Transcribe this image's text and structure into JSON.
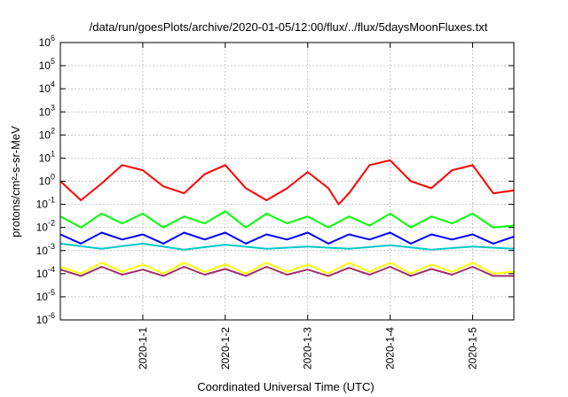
{
  "chart_data": {
    "type": "line",
    "title": "/data/run/goesPlots/archive/2020-01-05/12:00/flux/../flux/5daysMoonFluxes.txt",
    "xlabel": "Coordinated Universal Time (UTC)",
    "ylabel": "protons/cm²-s-sr-MeV",
    "y_scale": "log",
    "ylim": [
      1e-06,
      1000000.0
    ],
    "xlim": [
      "2019-12-31T00:00",
      "2020-01-05T12:00"
    ],
    "grid": true,
    "legend": "none",
    "y_ticks": [
      {
        "base": "10",
        "exp": "-6"
      },
      {
        "base": "10",
        "exp": "-5"
      },
      {
        "base": "10",
        "exp": "-4"
      },
      {
        "base": "10",
        "exp": "-3"
      },
      {
        "base": "10",
        "exp": "-2"
      },
      {
        "base": "10",
        "exp": "-1"
      },
      {
        "base": "10",
        "exp": "0"
      },
      {
        "base": "10",
        "exp": "1"
      },
      {
        "base": "10",
        "exp": "2"
      },
      {
        "base": "10",
        "exp": "3"
      },
      {
        "base": "10",
        "exp": "4"
      },
      {
        "base": "10",
        "exp": "5"
      },
      {
        "base": "10",
        "exp": "6"
      }
    ],
    "x_ticks": [
      {
        "label": "2020-1-1",
        "t": "2020-01-01T00:00"
      },
      {
        "label": "2020-1-2",
        "t": "2020-01-02T00:00"
      },
      {
        "label": "2020-1-3",
        "t": "2020-01-03T00:00"
      },
      {
        "label": "2020-1-4",
        "t": "2020-01-04T00:00"
      },
      {
        "label": "2020-1-5",
        "t": "2020-01-05T00:00"
      }
    ],
    "series": [
      {
        "color": "#ff0000",
        "x": [
          "2019-12-31T00:00",
          "2019-12-31T06:00",
          "2019-12-31T12:00",
          "2019-12-31T18:00",
          "2020-01-01T00:00",
          "2020-01-01T06:00",
          "2020-01-01T12:00",
          "2020-01-01T18:00",
          "2020-01-02T00:00",
          "2020-01-02T06:00",
          "2020-01-02T12:00",
          "2020-01-02T18:00",
          "2020-01-03T00:00",
          "2020-01-03T06:00",
          "2020-01-03T09:00",
          "2020-01-03T12:00",
          "2020-01-03T18:00",
          "2020-01-04T00:00",
          "2020-01-04T06:00",
          "2020-01-04T12:00",
          "2020-01-04T18:00",
          "2020-01-05T00:00",
          "2020-01-05T06:00",
          "2020-01-05T12:00"
        ],
        "values": [
          1.0,
          0.15,
          0.8,
          5,
          3,
          0.6,
          0.3,
          2,
          5,
          0.5,
          0.15,
          0.5,
          2.5,
          0.5,
          0.1,
          0.3,
          5,
          8,
          1.0,
          0.5,
          3,
          5,
          0.3,
          0.4
        ]
      },
      {
        "color": "#00ff00",
        "x": [
          "2019-12-31T00:00",
          "2019-12-31T06:00",
          "2019-12-31T12:00",
          "2019-12-31T18:00",
          "2020-01-01T00:00",
          "2020-01-01T06:00",
          "2020-01-01T12:00",
          "2020-01-01T18:00",
          "2020-01-02T00:00",
          "2020-01-02T06:00",
          "2020-01-02T12:00",
          "2020-01-02T18:00",
          "2020-01-03T00:00",
          "2020-01-03T06:00",
          "2020-01-03T12:00",
          "2020-01-03T18:00",
          "2020-01-04T00:00",
          "2020-01-04T06:00",
          "2020-01-04T12:00",
          "2020-01-04T18:00",
          "2020-01-05T00:00",
          "2020-01-05T06:00",
          "2020-01-05T12:00"
        ],
        "values": [
          0.03,
          0.01,
          0.04,
          0.015,
          0.04,
          0.01,
          0.03,
          0.015,
          0.05,
          0.01,
          0.04,
          0.015,
          0.03,
          0.01,
          0.03,
          0.012,
          0.04,
          0.01,
          0.03,
          0.015,
          0.04,
          0.01,
          0.012
        ]
      },
      {
        "color": "#0000ff",
        "x": [
          "2019-12-31T00:00",
          "2019-12-31T06:00",
          "2019-12-31T12:00",
          "2019-12-31T18:00",
          "2020-01-01T00:00",
          "2020-01-01T06:00",
          "2020-01-01T12:00",
          "2020-01-01T18:00",
          "2020-01-02T00:00",
          "2020-01-02T06:00",
          "2020-01-02T12:00",
          "2020-01-02T18:00",
          "2020-01-03T00:00",
          "2020-01-03T06:00",
          "2020-01-03T12:00",
          "2020-01-03T18:00",
          "2020-01-04T00:00",
          "2020-01-04T06:00",
          "2020-01-04T12:00",
          "2020-01-04T18:00",
          "2020-01-05T00:00",
          "2020-01-05T06:00",
          "2020-01-05T12:00"
        ],
        "values": [
          0.005,
          0.002,
          0.006,
          0.003,
          0.005,
          0.002,
          0.006,
          0.003,
          0.006,
          0.002,
          0.005,
          0.003,
          0.006,
          0.002,
          0.005,
          0.003,
          0.006,
          0.002,
          0.005,
          0.003,
          0.005,
          0.002,
          0.004
        ]
      },
      {
        "color": "#00c8c8",
        "x": [
          "2019-12-31T00:00",
          "2019-12-31T12:00",
          "2020-01-01T00:00",
          "2020-01-01T12:00",
          "2020-01-02T00:00",
          "2020-01-02T12:00",
          "2020-01-03T00:00",
          "2020-01-03T12:00",
          "2020-01-04T00:00",
          "2020-01-04T12:00",
          "2020-01-05T00:00",
          "2020-01-05T12:00"
        ],
        "values": [
          0.002,
          0.0012,
          0.002,
          0.0011,
          0.0018,
          0.0012,
          0.0015,
          0.0012,
          0.0017,
          0.0011,
          0.0015,
          0.0012
        ]
      },
      {
        "color": "#ffff00",
        "x": [
          "2019-12-31T00:00",
          "2019-12-31T06:00",
          "2019-12-31T12:00",
          "2019-12-31T18:00",
          "2020-01-01T00:00",
          "2020-01-01T06:00",
          "2020-01-01T12:00",
          "2020-01-01T18:00",
          "2020-01-02T00:00",
          "2020-01-02T06:00",
          "2020-01-02T12:00",
          "2020-01-02T18:00",
          "2020-01-03T00:00",
          "2020-01-03T06:00",
          "2020-01-03T12:00",
          "2020-01-03T18:00",
          "2020-01-04T00:00",
          "2020-01-04T06:00",
          "2020-01-04T12:00",
          "2020-01-04T18:00",
          "2020-01-05T00:00",
          "2020-01-05T06:00",
          "2020-01-05T12:00"
        ],
        "values": [
          0.0002,
          0.0001,
          0.0003,
          0.00012,
          0.00025,
          0.0001,
          0.0003,
          0.00012,
          0.00025,
          0.0001,
          0.0003,
          0.00012,
          0.00025,
          0.0001,
          0.0003,
          0.00012,
          0.0003,
          0.0001,
          0.00025,
          0.00012,
          0.0003,
          0.0001,
          0.00012
        ]
      },
      {
        "color": "#a0306c",
        "x": [
          "2019-12-31T00:00",
          "2019-12-31T06:00",
          "2019-12-31T12:00",
          "2019-12-31T18:00",
          "2020-01-01T00:00",
          "2020-01-01T06:00",
          "2020-01-01T12:00",
          "2020-01-01T18:00",
          "2020-01-02T00:00",
          "2020-01-02T06:00",
          "2020-01-02T12:00",
          "2020-01-02T18:00",
          "2020-01-03T00:00",
          "2020-01-03T06:00",
          "2020-01-03T12:00",
          "2020-01-03T18:00",
          "2020-01-04T00:00",
          "2020-01-04T06:00",
          "2020-01-04T12:00",
          "2020-01-04T18:00",
          "2020-01-05T00:00",
          "2020-01-05T06:00",
          "2020-01-05T12:00"
        ],
        "values": [
          0.00015,
          8e-05,
          0.0002,
          9e-05,
          0.00015,
          8e-05,
          0.0002,
          9e-05,
          0.00016,
          8e-05,
          0.0002,
          9e-05,
          0.00015,
          8e-05,
          0.00018,
          9e-05,
          0.0002,
          8e-05,
          0.00016,
          9e-05,
          0.0002,
          8e-05,
          8e-05
        ]
      }
    ]
  }
}
